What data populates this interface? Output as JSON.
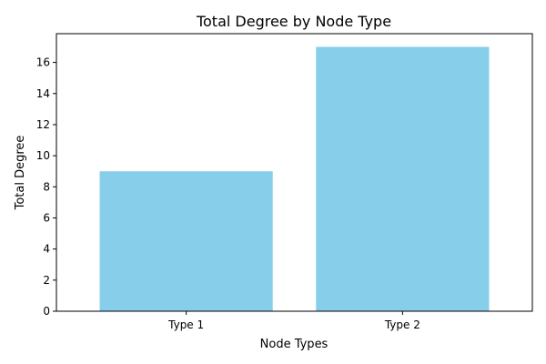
{
  "chart_data": {
    "type": "bar",
    "title": "Total Degree by Node Type",
    "xlabel": "Node Types",
    "ylabel": "Total Degree",
    "categories": [
      "Type 1",
      "Type 2"
    ],
    "values": [
      9,
      17
    ],
    "ylim": [
      0,
      17.85
    ],
    "yticks": [
      0,
      2,
      4,
      6,
      8,
      10,
      12,
      14,
      16
    ],
    "bar_color": "#87ceeb",
    "grid": false,
    "legend": "none"
  }
}
